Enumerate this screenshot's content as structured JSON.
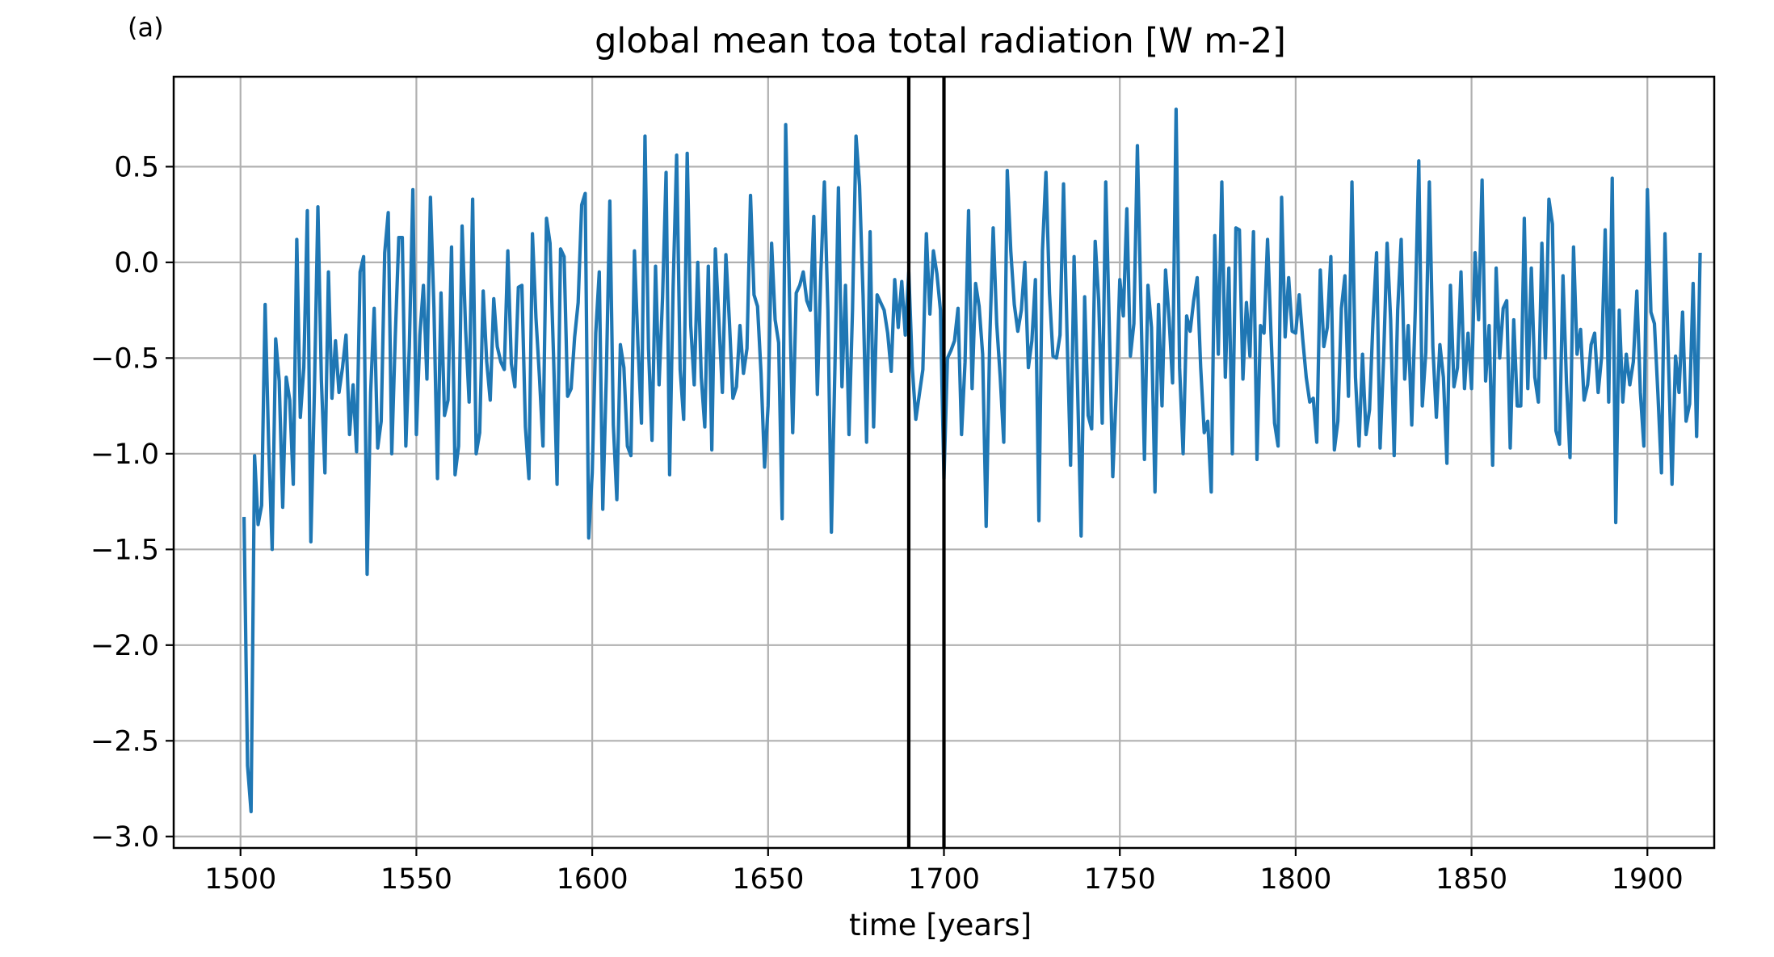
{
  "panel_label": "(a)",
  "chart_data": {
    "type": "line",
    "title": "global mean toa total radiation [W m-2]",
    "xlabel": "time [years]",
    "ylabel": "",
    "xlim": [
      1481,
      1919
    ],
    "ylim": [
      -3.06,
      0.97
    ],
    "xticks": [
      1500,
      1550,
      1600,
      1650,
      1700,
      1750,
      1800,
      1850,
      1900
    ],
    "xtick_labels": [
      "1500",
      "1550",
      "1600",
      "1650",
      "1700",
      "1750",
      "1800",
      "1850",
      "1900"
    ],
    "yticks": [
      0.5,
      0.0,
      -0.5,
      -1.0,
      -1.5,
      -2.0,
      -2.5,
      -3.0
    ],
    "ytick_labels": [
      "0.5",
      "0.0",
      "−0.5",
      "−1.0",
      "−1.5",
      "−2.0",
      "−2.5",
      "−3.0"
    ],
    "grid": true,
    "vertical_lines": [
      1690,
      1700
    ],
    "series": [
      {
        "color": "#1f77b4",
        "x_start": 1501,
        "x_step": 1,
        "values": [
          -1.33,
          -2.63,
          -2.87,
          -1.01,
          -1.37,
          -1.27,
          -0.22,
          -0.95,
          -1.5,
          -0.4,
          -0.62,
          -1.28,
          -0.6,
          -0.72,
          -1.16,
          0.12,
          -0.81,
          -0.55,
          0.27,
          -1.46,
          -0.68,
          0.29,
          -0.62,
          -1.1,
          -0.05,
          -0.71,
          -0.41,
          -0.68,
          -0.55,
          -0.38,
          -0.9,
          -0.64,
          -0.99,
          -0.05,
          0.03,
          -1.63,
          -0.68,
          -0.24,
          -0.97,
          -0.83,
          0.05,
          0.26,
          -1.0,
          -0.39,
          0.13,
          0.13,
          -0.96,
          -0.44,
          0.38,
          -0.9,
          -0.38,
          -0.12,
          -0.61,
          0.34,
          -0.24,
          -1.13,
          -0.16,
          -0.8,
          -0.72,
          0.08,
          -1.11,
          -0.96,
          0.19,
          -0.35,
          -0.73,
          0.33,
          -1.0,
          -0.89,
          -0.15,
          -0.52,
          -0.72,
          -0.19,
          -0.44,
          -0.52,
          -0.56,
          0.06,
          -0.53,
          -0.65,
          -0.13,
          -0.12,
          -0.86,
          -1.13,
          0.15,
          -0.29,
          -0.6,
          -0.96,
          0.23,
          0.1,
          -0.49,
          -1.16,
          0.07,
          0.03,
          -0.7,
          -0.66,
          -0.39,
          -0.21,
          0.3,
          0.36,
          -1.44,
          -1.1,
          -0.37,
          -0.05,
          -1.29,
          -0.6,
          0.32,
          -0.85,
          -1.24,
          -0.43,
          -0.55,
          -0.96,
          -1.01,
          0.06,
          -0.43,
          -0.84,
          0.66,
          -0.45,
          -0.93,
          -0.02,
          -0.64,
          -0.18,
          0.47,
          -1.11,
          -0.13,
          0.56,
          -0.56,
          -0.82,
          0.57,
          -0.33,
          -0.64,
          0.0,
          -0.6,
          -0.86,
          -0.02,
          -0.98,
          0.07,
          -0.3,
          -0.68,
          0.04,
          -0.31,
          -0.71,
          -0.65,
          -0.33,
          -0.58,
          -0.45,
          0.35,
          -0.17,
          -0.23,
          -0.58,
          -1.07,
          -0.75,
          0.1,
          -0.3,
          -0.42,
          -1.34,
          0.72,
          -0.11,
          -0.89,
          -0.16,
          -0.12,
          -0.05,
          -0.2,
          -0.25,
          0.24,
          -0.69,
          -0.05,
          0.42,
          -0.25,
          -1.41,
          -0.55,
          0.39,
          -0.65,
          -0.12,
          -0.9,
          -0.25,
          0.66,
          0.4,
          -0.17,
          -0.94,
          0.16,
          -0.86,
          -0.17,
          -0.21,
          -0.25,
          -0.37,
          -0.57,
          -0.09,
          -0.34,
          -0.1,
          -0.38,
          -0.05,
          -0.55,
          -0.82,
          -0.69,
          -0.56,
          0.15,
          -0.27,
          0.06,
          -0.06,
          -0.25,
          -1.13,
          -0.5,
          -0.46,
          -0.41,
          -0.24,
          -0.9,
          -0.52,
          0.27,
          -0.66,
          -0.11,
          -0.23,
          -0.48,
          -1.38,
          -0.42,
          0.18,
          -0.32,
          -0.6,
          -0.94,
          0.48,
          0.06,
          -0.22,
          -0.36,
          -0.25,
          0.0,
          -0.55,
          -0.41,
          -0.09,
          -1.35,
          0.06,
          0.47,
          -0.16,
          -0.49,
          -0.5,
          -0.38,
          0.41,
          -0.38,
          -1.06,
          0.03,
          -0.66,
          -1.43,
          -0.18,
          -0.8,
          -0.87,
          0.11,
          -0.2,
          -0.84,
          0.42,
          -0.33,
          -1.12,
          -0.67,
          -0.09,
          -0.28,
          0.28,
          -0.49,
          -0.32,
          0.61,
          -0.22,
          -1.03,
          -0.12,
          -0.34,
          -1.2,
          -0.22,
          -0.75,
          -0.04,
          -0.29,
          -0.63,
          0.8,
          -0.55,
          -1.0,
          -0.28,
          -0.36,
          -0.2,
          -0.08,
          -0.55,
          -0.89,
          -0.83,
          -1.2,
          0.14,
          -0.48,
          0.42,
          -0.6,
          -0.03,
          -1.0,
          0.18,
          0.17,
          -0.61,
          -0.21,
          -0.49,
          0.16,
          -1.03,
          -0.33,
          -0.37,
          0.12,
          -0.38,
          -0.84,
          -0.96,
          0.34,
          -0.39,
          -0.08,
          -0.36,
          -0.37,
          -0.17,
          -0.4,
          -0.6,
          -0.73,
          -0.71,
          -0.94,
          -0.04,
          -0.44,
          -0.34,
          0.03,
          -0.98,
          -0.83,
          -0.24,
          -0.07,
          -0.7,
          0.42,
          -0.6,
          -0.96,
          -0.48,
          -0.9,
          -0.77,
          -0.3,
          0.05,
          -0.97,
          -0.5,
          0.1,
          -0.3,
          -1.01,
          -0.25,
          0.12,
          -0.61,
          -0.33,
          -0.85,
          -0.25,
          0.53,
          -0.75,
          -0.47,
          0.42,
          -0.44,
          -0.81,
          -0.43,
          -0.6,
          -1.05,
          -0.12,
          -0.65,
          -0.55,
          -0.05,
          -0.66,
          -0.37,
          -0.66,
          0.05,
          -0.3,
          0.43,
          -0.62,
          -0.33,
          -1.06,
          -0.03,
          -0.5,
          -0.24,
          -0.2,
          -0.97,
          -0.3,
          -0.75,
          -0.75,
          0.23,
          -0.66,
          -0.03,
          -0.6,
          -0.73,
          0.1,
          -0.5,
          0.33,
          0.2,
          -0.88,
          -0.95,
          -0.07,
          -0.63,
          -1.02,
          0.08,
          -0.48,
          -0.35,
          -0.72,
          -0.64,
          -0.43,
          -0.37,
          -0.68,
          -0.49,
          0.17,
          -0.73,
          0.44,
          -1.36,
          -0.25,
          -0.73,
          -0.48,
          -0.64,
          -0.52,
          -0.15,
          -0.68,
          -0.96,
          0.38,
          -0.26,
          -0.32,
          -0.69,
          -1.1,
          0.15,
          -0.52,
          -1.16,
          -0.49,
          -0.68,
          -0.26,
          -0.83,
          -0.74,
          -0.11,
          -0.91,
          0.05
        ]
      }
    ]
  }
}
